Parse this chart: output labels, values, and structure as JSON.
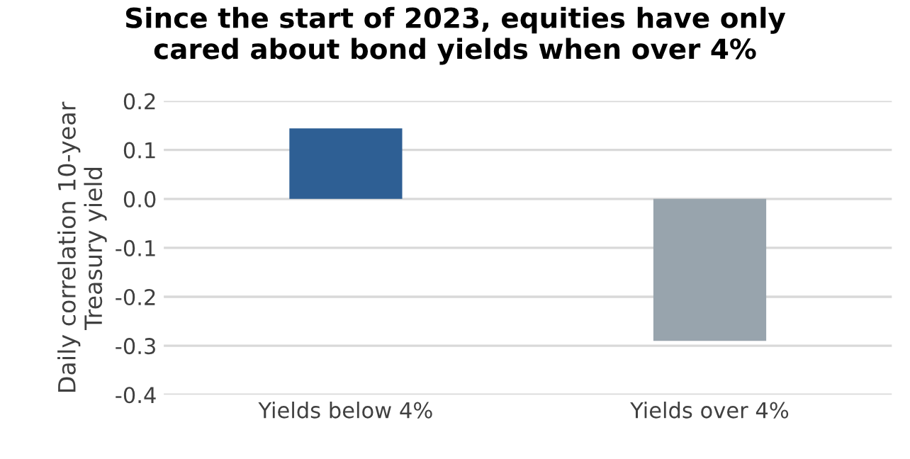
{
  "chart_data": {
    "type": "bar",
    "title": "Since the start of 2023, equities have only\ncared about bond yields when over 4%",
    "ylabel": "Daily correlation 10-year\nTreasury yield",
    "categories": [
      "Yields below 4%",
      "Yields over 4%"
    ],
    "values": [
      0.144,
      -0.29
    ],
    "colors": [
      "#2e5f94",
      "#98a4ad"
    ],
    "ylim": [
      -0.4,
      0.2
    ],
    "yticks": [
      {
        "value": -0.4,
        "label": "-0.4"
      },
      {
        "value": -0.3,
        "label": "-0.3"
      },
      {
        "value": -0.2,
        "label": "-0.2"
      },
      {
        "value": -0.1,
        "label": "-0.1"
      },
      {
        "value": 0,
        "label": "0.0"
      },
      {
        "value": 0.1,
        "label": "0.1"
      },
      {
        "value": 0.2,
        "label": "0.2"
      }
    ],
    "grid": "y"
  }
}
